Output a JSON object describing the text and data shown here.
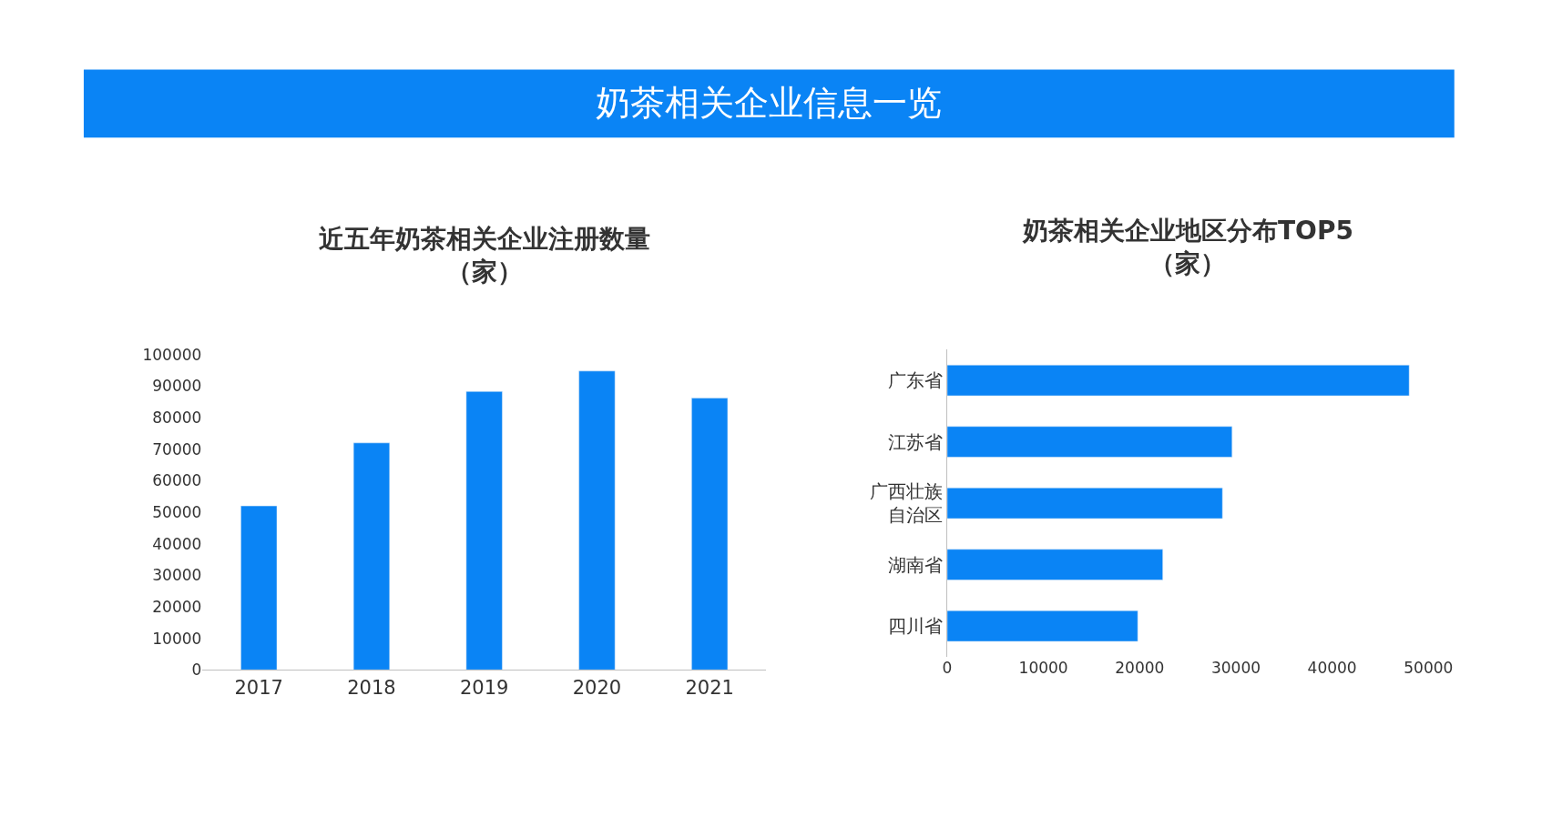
{
  "chart_data": [
    {
      "type": "other",
      "title": "奶茶相关企业信息一览",
      "color": "#0a84f5"
    },
    {
      "type": "bar",
      "title": "近五年奶茶相关企业注册数量",
      "subtitle": "（家）",
      "categories": [
        "2017",
        "2018",
        "2019",
        "2020",
        "2021"
      ],
      "values": [
        52000,
        72000,
        88300,
        94800,
        86200
      ],
      "color": "#0a84f5",
      "ylim": [
        0,
        100000
      ],
      "yticks": [
        0,
        10000,
        20000,
        30000,
        40000,
        50000,
        60000,
        70000,
        80000,
        90000,
        100000
      ]
    },
    {
      "type": "bar",
      "orientation": "horizontal",
      "title": "奶茶相关企业地区分布TOP5",
      "subtitle": "（家）",
      "categories": [
        "广东省",
        "江苏省",
        "广西壮族自治区",
        "湖南省",
        "四川省"
      ],
      "values": [
        48000,
        29600,
        28600,
        22400,
        19800
      ],
      "color": "#0a84f5",
      "xlim": [
        0,
        50000
      ],
      "xticks": [
        0,
        10000,
        20000,
        30000,
        40000,
        50000
      ]
    }
  ]
}
